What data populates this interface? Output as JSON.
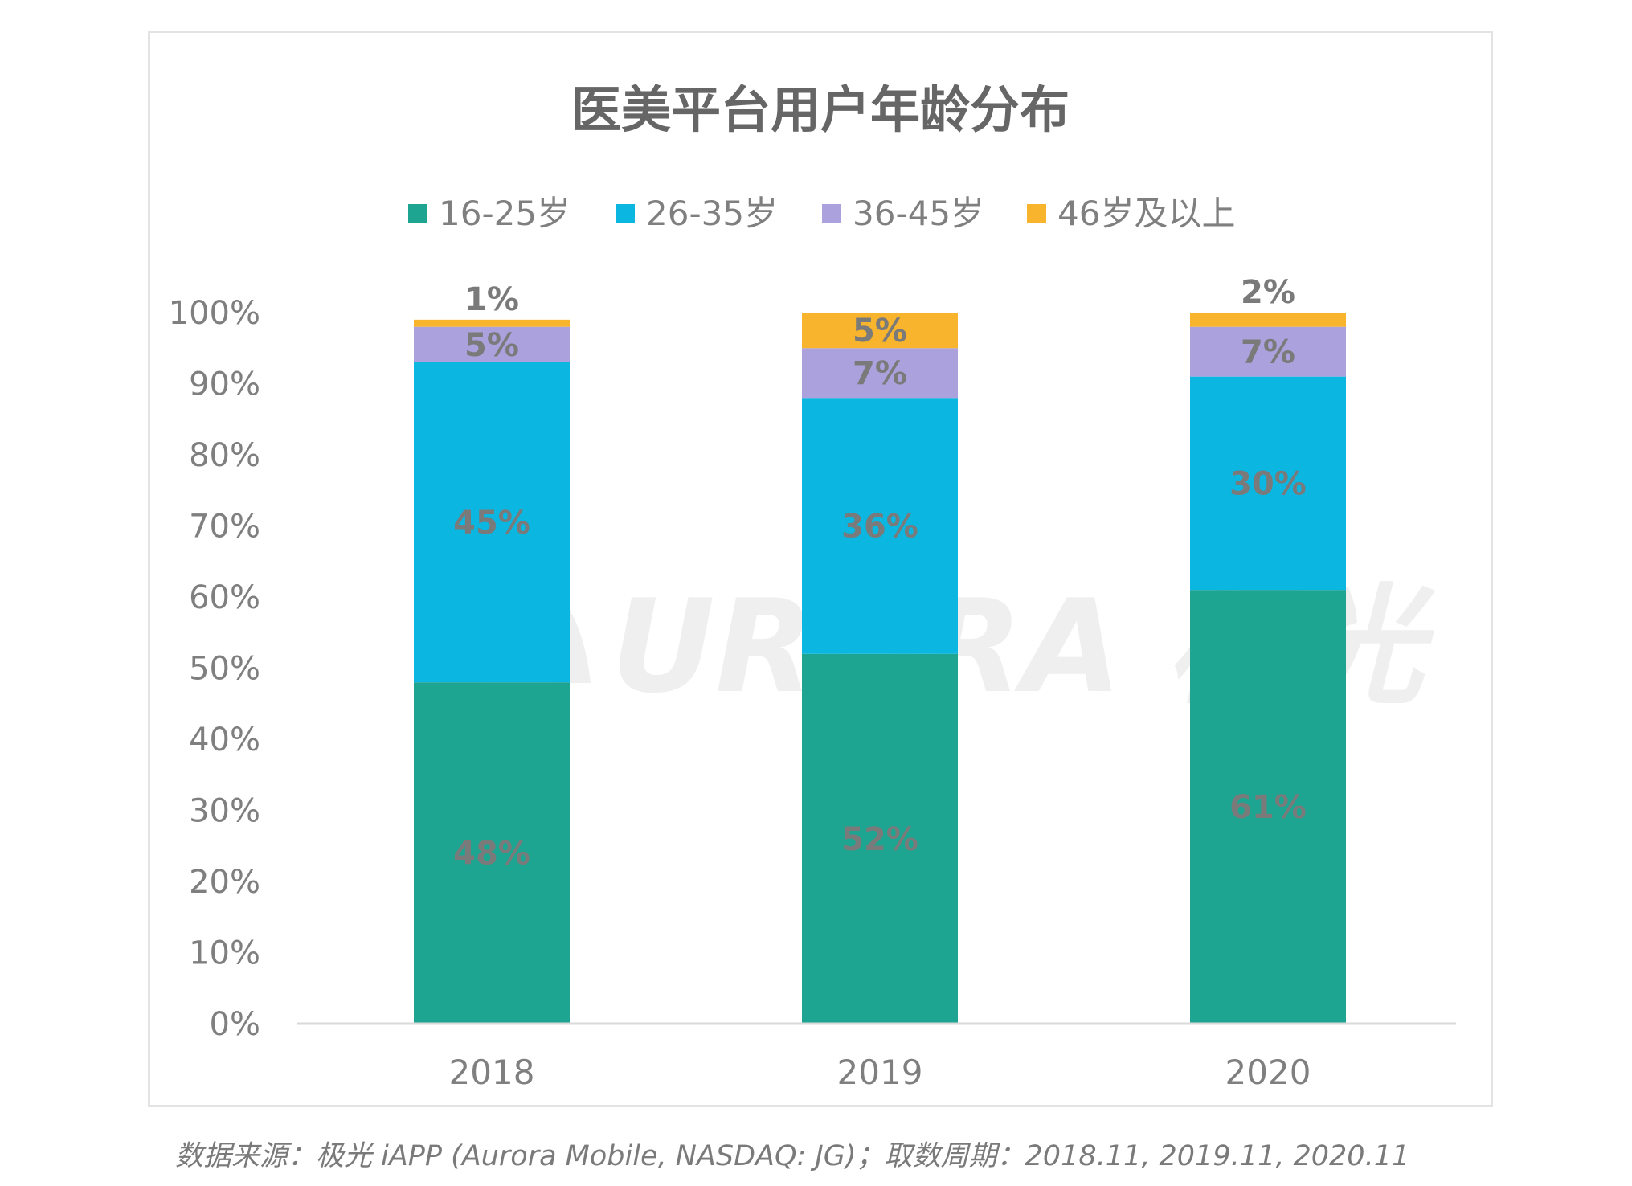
{
  "chart_data": {
    "type": "bar",
    "stacked": true,
    "title": "医美平台用户年龄分布",
    "categories": [
      "2018",
      "2019",
      "2020"
    ],
    "series": [
      {
        "name": "16-25岁",
        "color": "#1ea592",
        "values": [
          48,
          52,
          61
        ],
        "labels": [
          "48%",
          "52%",
          "61%"
        ]
      },
      {
        "name": "26-35岁",
        "color": "#0bb6e0",
        "values": [
          45,
          36,
          30
        ],
        "labels": [
          "45%",
          "36%",
          "30%"
        ]
      },
      {
        "name": "36-45岁",
        "color": "#aba1dd",
        "values": [
          5,
          7,
          7
        ],
        "labels": [
          "5%",
          "7%",
          "7%"
        ]
      },
      {
        "name": "46岁及以上",
        "color": "#f7b42c",
        "values": [
          1,
          5,
          2
        ],
        "labels": [
          "1%",
          "5%",
          "2%"
        ]
      }
    ],
    "ylim": [
      0,
      100
    ],
    "yticks": [
      "0%",
      "10%",
      "20%",
      "30%",
      "40%",
      "50%",
      "60%",
      "70%",
      "80%",
      "90%",
      "100%"
    ],
    "grid": false,
    "legend_position": "top"
  },
  "watermark": "URORA 极光",
  "source": "数据来源：极光 iAPP (Aurora Mobile, NASDAQ: JG)；取数周期：2018.11, 2019.11, 2020.11",
  "colors": {
    "frame": "#e3e3e3",
    "axis_text": "#7f7f7f",
    "title": "#666666",
    "label": "#7a7a7a"
  }
}
